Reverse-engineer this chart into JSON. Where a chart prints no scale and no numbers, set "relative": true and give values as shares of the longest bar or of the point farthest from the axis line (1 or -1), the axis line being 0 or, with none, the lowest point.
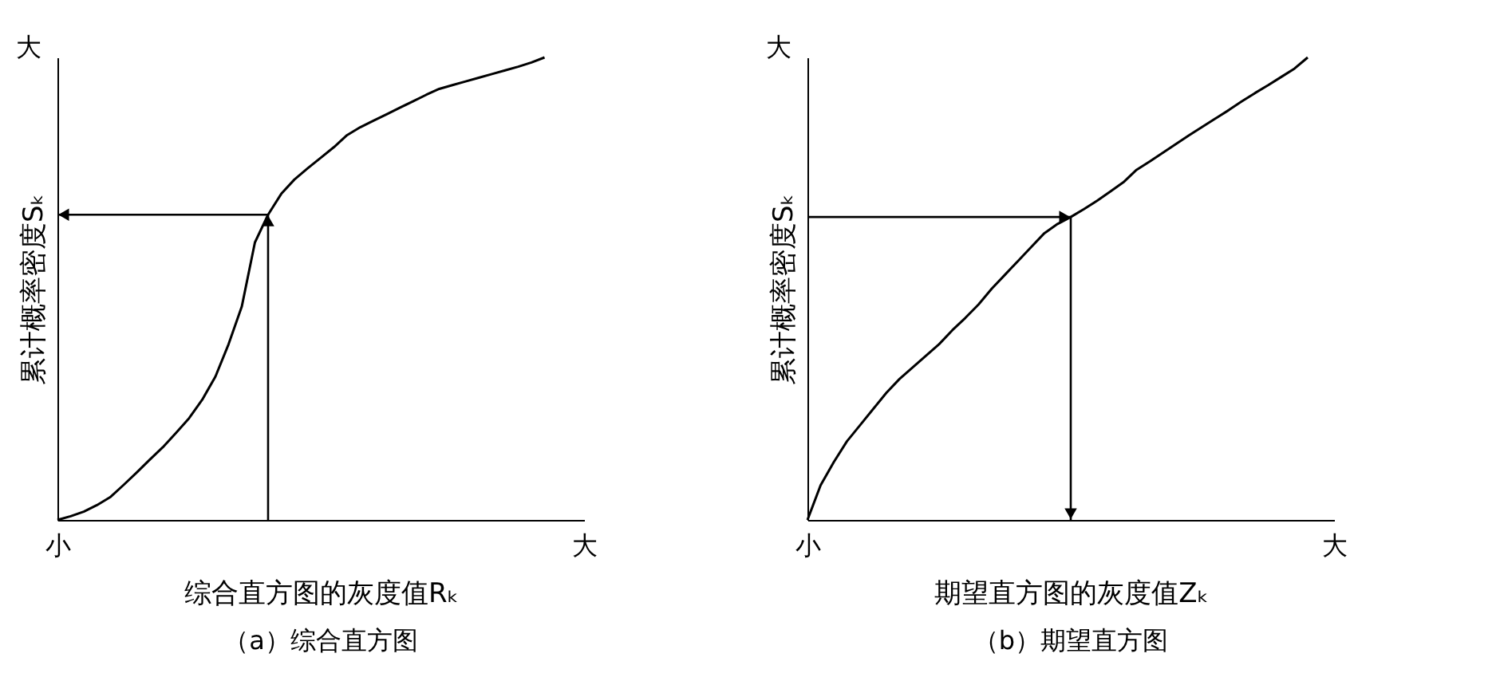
{
  "chart_data": [
    {
      "type": "line",
      "title": "（a）综合直方图",
      "xlabel": "综合直方图的灰度值Rₖ",
      "ylabel": "累计概率密度Sₖ",
      "relative": true,
      "categories": [
        "小",
        null,
        null,
        null,
        null,
        null,
        null,
        null,
        null,
        null,
        null,
        null,
        null,
        null,
        null,
        null,
        null,
        null,
        null,
        null,
        null,
        null,
        null,
        null,
        null,
        null,
        null,
        null,
        null,
        null,
        null,
        null,
        null,
        null,
        null,
        null,
        null,
        null,
        null,
        null,
        "大"
      ],
      "series": [
        {
          "color": "#000000",
          "values": [
            0,
            0.008,
            0.018,
            0.032,
            0.049,
            0.075,
            0.102,
            0.13,
            0.157,
            0.188,
            0.22,
            0.26,
            0.31,
            0.38,
            0.461,
            0.6,
            0.66,
            0.705,
            0.736,
            0.76,
            0.783,
            0.806,
            0.832,
            0.849,
            0.863,
            0.877,
            0.891,
            0.905,
            0.919,
            0.932,
            0.94,
            0.948,
            0.956,
            0.964,
            0.972,
            0.98,
            0.989,
            1,
            null,
            null,
            null
          ]
        }
      ],
      "ref_lines": [
        {
          "axis": "y",
          "value": 0.66
        }
      ],
      "annotations": [
        "大"
      ]
    },
    {
      "type": "line",
      "title": "（b）期望直方图",
      "xlabel": "期望直方图的灰度值Zₖ",
      "ylabel": "累计概率密度Sₖ",
      "relative": true,
      "categories": [
        "小",
        null,
        null,
        null,
        null,
        null,
        null,
        null,
        null,
        null,
        null,
        null,
        null,
        null,
        null,
        null,
        null,
        null,
        null,
        null,
        null,
        null,
        null,
        null,
        null,
        null,
        null,
        null,
        null,
        null,
        null,
        null,
        null,
        null,
        null,
        null,
        null,
        null,
        null,
        null,
        "大"
      ],
      "series": [
        {
          "color": "#000000",
          "values": [
            0,
            0.075,
            0.125,
            0.17,
            0.205,
            0.24,
            0.275,
            0.305,
            0.33,
            0.355,
            0.38,
            0.41,
            0.437,
            0.466,
            0.5,
            0.53,
            0.56,
            0.59,
            0.62,
            0.64,
            0.655,
            0.672,
            0.69,
            0.71,
            0.73,
            0.757,
            0.775,
            0.794,
            0.813,
            0.832,
            0.85,
            0.868,
            0.886,
            0.905,
            0.923,
            0.94,
            0.958,
            0.976,
            1,
            null,
            null
          ]
        }
      ],
      "ref_lines": [
        {
          "axis": "y",
          "value": 0.655
        }
      ],
      "annotations": [
        "大"
      ]
    }
  ]
}
